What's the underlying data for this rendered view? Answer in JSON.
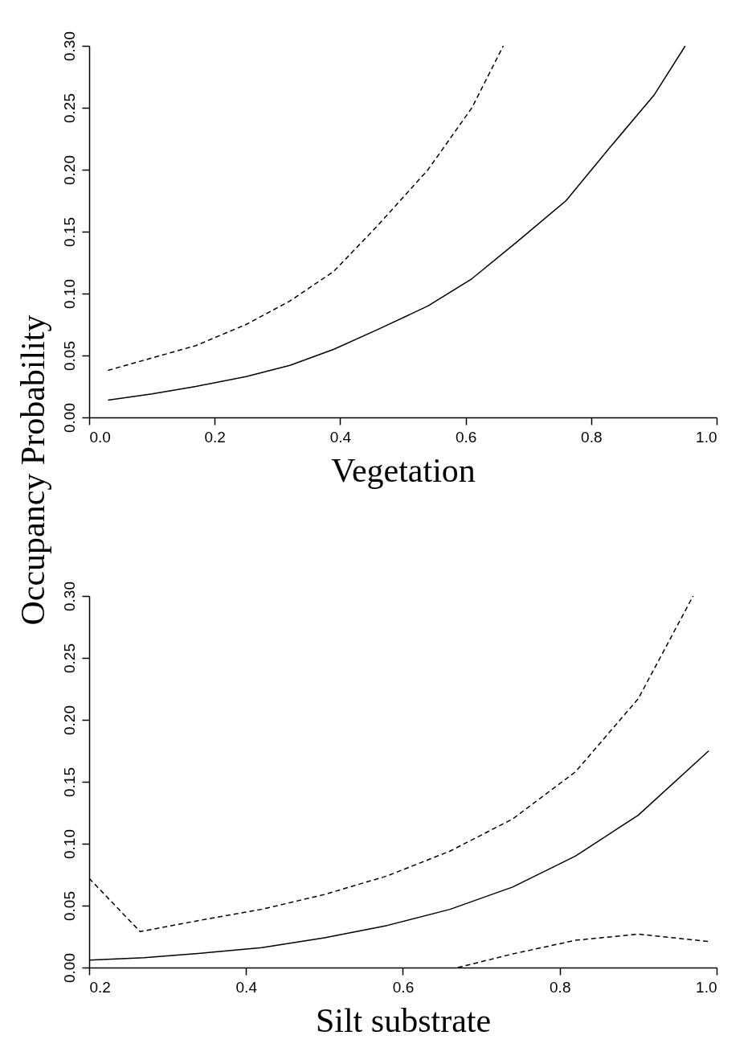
{
  "chart_data": [
    {
      "type": "line",
      "xlabel": "Vegetation",
      "ylabel": "Occupancy Probability",
      "xlim": [
        0,
        1
      ],
      "ylim": [
        0,
        0.3
      ],
      "xticks": [
        {
          "value": 0,
          "label": "0.0"
        },
        {
          "value": 0.2,
          "label": "0.2"
        },
        {
          "value": 0.4,
          "label": "0.4"
        },
        {
          "value": 0.6,
          "label": "0.6"
        },
        {
          "value": 0.8,
          "label": "0.8"
        },
        {
          "value": 1,
          "label": "1.0"
        }
      ],
      "yticks": [
        {
          "value": 0,
          "label": "0.00"
        },
        {
          "value": 0.05,
          "label": "0.05"
        },
        {
          "value": 0.1,
          "label": "0.10"
        },
        {
          "value": 0.15,
          "label": "0.15"
        },
        {
          "value": 0.2,
          "label": "0.20"
        },
        {
          "value": 0.25,
          "label": "0.25"
        },
        {
          "value": 0.3,
          "label": "0.30"
        }
      ],
      "series": [
        {
          "color": "#000000",
          "line_style": "solid",
          "x": [
            0.03,
            0.1,
            0.17,
            0.25,
            0.32,
            0.39,
            0.46,
            0.54,
            0.61,
            0.68,
            0.76,
            0.83,
            0.9,
            0.95
          ],
          "values": [
            0.014,
            0.019,
            0.025,
            0.033,
            0.042,
            0.055,
            0.071,
            0.09,
            0.112,
            0.141,
            0.175,
            0.218,
            0.26,
            0.3
          ]
        },
        {
          "color": "#000000",
          "line_style": "dashed",
          "x": [
            0.03,
            0.1,
            0.17,
            0.25,
            0.32,
            0.39,
            0.46,
            0.54,
            0.61,
            0.66
          ],
          "values": [
            0.038,
            0.048,
            0.058,
            0.075,
            0.094,
            0.118,
            0.155,
            0.2,
            0.25,
            0.3
          ]
        }
      ]
    },
    {
      "type": "line",
      "xlabel": "Silt substrate",
      "xlim": [
        0.2,
        1
      ],
      "ylim": [
        0,
        0.3
      ],
      "xticks": [
        {
          "value": 0.2,
          "label": "0.2"
        },
        {
          "value": 0.4,
          "label": "0.4"
        },
        {
          "value": 0.6,
          "label": "0.6"
        },
        {
          "value": 0.8,
          "label": "0.8"
        },
        {
          "value": 1,
          "label": "1.0"
        }
      ],
      "yticks": [
        {
          "value": 0,
          "label": "0.00"
        },
        {
          "value": 0.05,
          "label": "0.05"
        },
        {
          "value": 0.1,
          "label": "0.10"
        },
        {
          "value": 0.15,
          "label": "0.15"
        },
        {
          "value": 0.2,
          "label": "0.20"
        },
        {
          "value": 0.25,
          "label": "0.25"
        },
        {
          "value": 0.3,
          "label": "0.30"
        }
      ],
      "series": [
        {
          "color": "#000000",
          "line_style": "solid",
          "x": [
            0.2,
            0.27,
            0.35,
            0.42,
            0.5,
            0.58,
            0.66,
            0.74,
            0.82,
            0.9,
            0.99
          ],
          "values": [
            0.006,
            0.008,
            0.012,
            0.016,
            0.024,
            0.034,
            0.047,
            0.065,
            0.09,
            0.123,
            0.175
          ]
        },
        {
          "color": "#000000",
          "line_style": "dashed",
          "x": [
            0.2,
            0.265,
            0.34,
            0.42,
            0.5,
            0.58,
            0.66,
            0.74,
            0.82,
            0.9,
            0.97
          ],
          "values": [
            0.072,
            0.029,
            0.038,
            0.047,
            0.059,
            0.074,
            0.094,
            0.12,
            0.158,
            0.217,
            0.3
          ]
        },
        {
          "color": "#000000",
          "line_style": "dashed",
          "x": [
            0.67,
            0.74,
            0.82,
            0.9,
            0.99
          ],
          "values": [
            0,
            0.011,
            0.022,
            0.027,
            0.021
          ]
        }
      ]
    }
  ]
}
